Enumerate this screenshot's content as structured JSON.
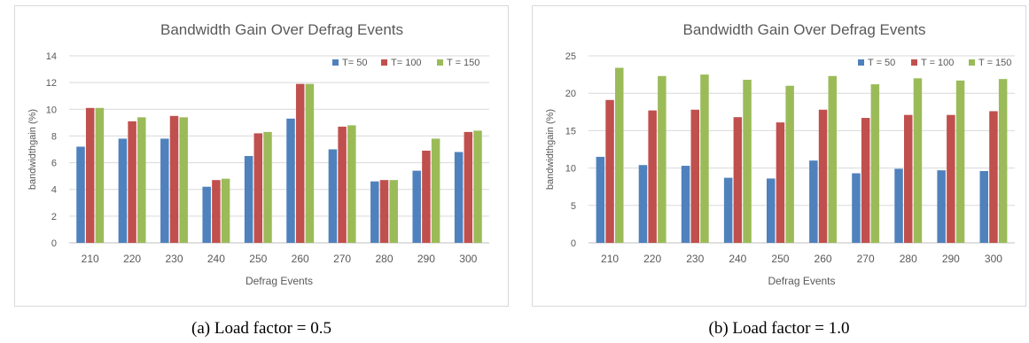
{
  "chart_data": [
    {
      "type": "bar",
      "title": "Bandwidth Gain Over Defrag Events",
      "xlabel": "Defrag Events",
      "ylabel": "bandwidthgain (%)",
      "categories": [
        "210",
        "220",
        "230",
        "240",
        "250",
        "260",
        "270",
        "280",
        "290",
        "300"
      ],
      "ylim": [
        0,
        14
      ],
      "yticks": [
        "0",
        "2",
        "4",
        "6",
        "8",
        "10",
        "12",
        "14"
      ],
      "grid": true,
      "legend_position": "top-right",
      "series": [
        {
          "name": "T= 50",
          "color": "#4f81bd",
          "values": [
            7.2,
            7.8,
            7.8,
            4.2,
            6.5,
            9.3,
            7.0,
            4.6,
            5.4,
            6.8
          ]
        },
        {
          "name": "T= 100",
          "color": "#c0504d",
          "values": [
            10.1,
            9.1,
            9.5,
            4.7,
            8.2,
            11.9,
            8.7,
            4.7,
            6.9,
            8.3
          ]
        },
        {
          "name": "T = 150",
          "color": "#9bbb59",
          "values": [
            10.1,
            9.4,
            9.4,
            4.8,
            8.3,
            11.9,
            8.8,
            4.7,
            7.8,
            8.4
          ]
        }
      ]
    },
    {
      "type": "bar",
      "title": "Bandwidth Gain Over Defrag Events",
      "xlabel": "Defrag Events",
      "ylabel": "bandwidthgain (%)",
      "categories": [
        "210",
        "220",
        "230",
        "240",
        "250",
        "260",
        "270",
        "280",
        "290",
        "300"
      ],
      "ylim": [
        0,
        25
      ],
      "yticks": [
        "0",
        "5",
        "10",
        "15",
        "20",
        "25"
      ],
      "grid": true,
      "legend_position": "top-right",
      "series": [
        {
          "name": "T = 50",
          "color": "#4f81bd",
          "values": [
            11.5,
            10.4,
            10.3,
            8.7,
            8.6,
            11.0,
            9.3,
            9.9,
            9.7,
            9.6
          ]
        },
        {
          "name": "T = 100",
          "color": "#c0504d",
          "values": [
            19.1,
            17.7,
            17.8,
            16.8,
            16.1,
            17.8,
            16.7,
            17.1,
            17.1,
            17.6
          ]
        },
        {
          "name": "T = 150",
          "color": "#9bbb59",
          "values": [
            23.4,
            22.3,
            22.5,
            21.8,
            21.0,
            22.3,
            21.2,
            22.0,
            21.7,
            21.9
          ]
        }
      ]
    }
  ],
  "captions": [
    "(a) Load factor = 0.5",
    "(b) Load factor = 1.0"
  ]
}
